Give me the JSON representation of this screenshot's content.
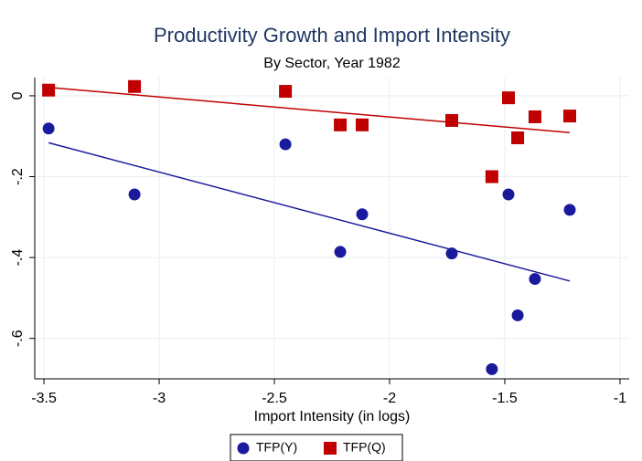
{
  "chart_data": {
    "type": "scatter",
    "title": "Productivity Growth and Import Intensity",
    "subtitle": "By Sector, Year 1982",
    "x_label": "Import Intensity (in logs)",
    "xlim": [
      -3.54,
      -0.96
    ],
    "xticks": [
      -3.5,
      -3,
      -2.5,
      -2,
      -1.5,
      -1
    ],
    "ylim": [
      -0.7,
      0.045
    ],
    "yticks": [
      0,
      {
        "value": -0.2,
        "label": "-.2"
      },
      {
        "value": -0.4,
        "label": "-.4"
      },
      {
        "value": -0.6,
        "label": "-.6"
      }
    ],
    "grid": true,
    "fit_lines": true,
    "legend": "bottom",
    "series": [
      {
        "name": "TFP(Y)",
        "color": "#1a1a9c",
        "marker": "circle",
        "x": [
          -3.48,
          -3.107,
          -2.452,
          -2.214,
          -2.119,
          -1.73,
          -1.556,
          -1.484,
          -1.444,
          -1.369,
          -1.218
        ],
        "values": [
          -0.081,
          -0.244,
          -0.12,
          -0.386,
          -0.293,
          -0.39,
          -0.676,
          -0.244,
          -0.543,
          -0.453,
          -0.282
        ]
      },
      {
        "name": "TFP(Q)",
        "color": "#c00000",
        "marker": "square",
        "x": [
          -3.48,
          -3.107,
          -2.452,
          -2.214,
          -2.119,
          -1.73,
          -1.556,
          -1.484,
          -1.444,
          -1.369,
          -1.218
        ],
        "values": [
          0.014,
          0.023,
          0.011,
          -0.072,
          -0.072,
          -0.061,
          -0.2,
          -0.005,
          -0.104,
          -0.052,
          -0.05
        ]
      }
    ]
  }
}
